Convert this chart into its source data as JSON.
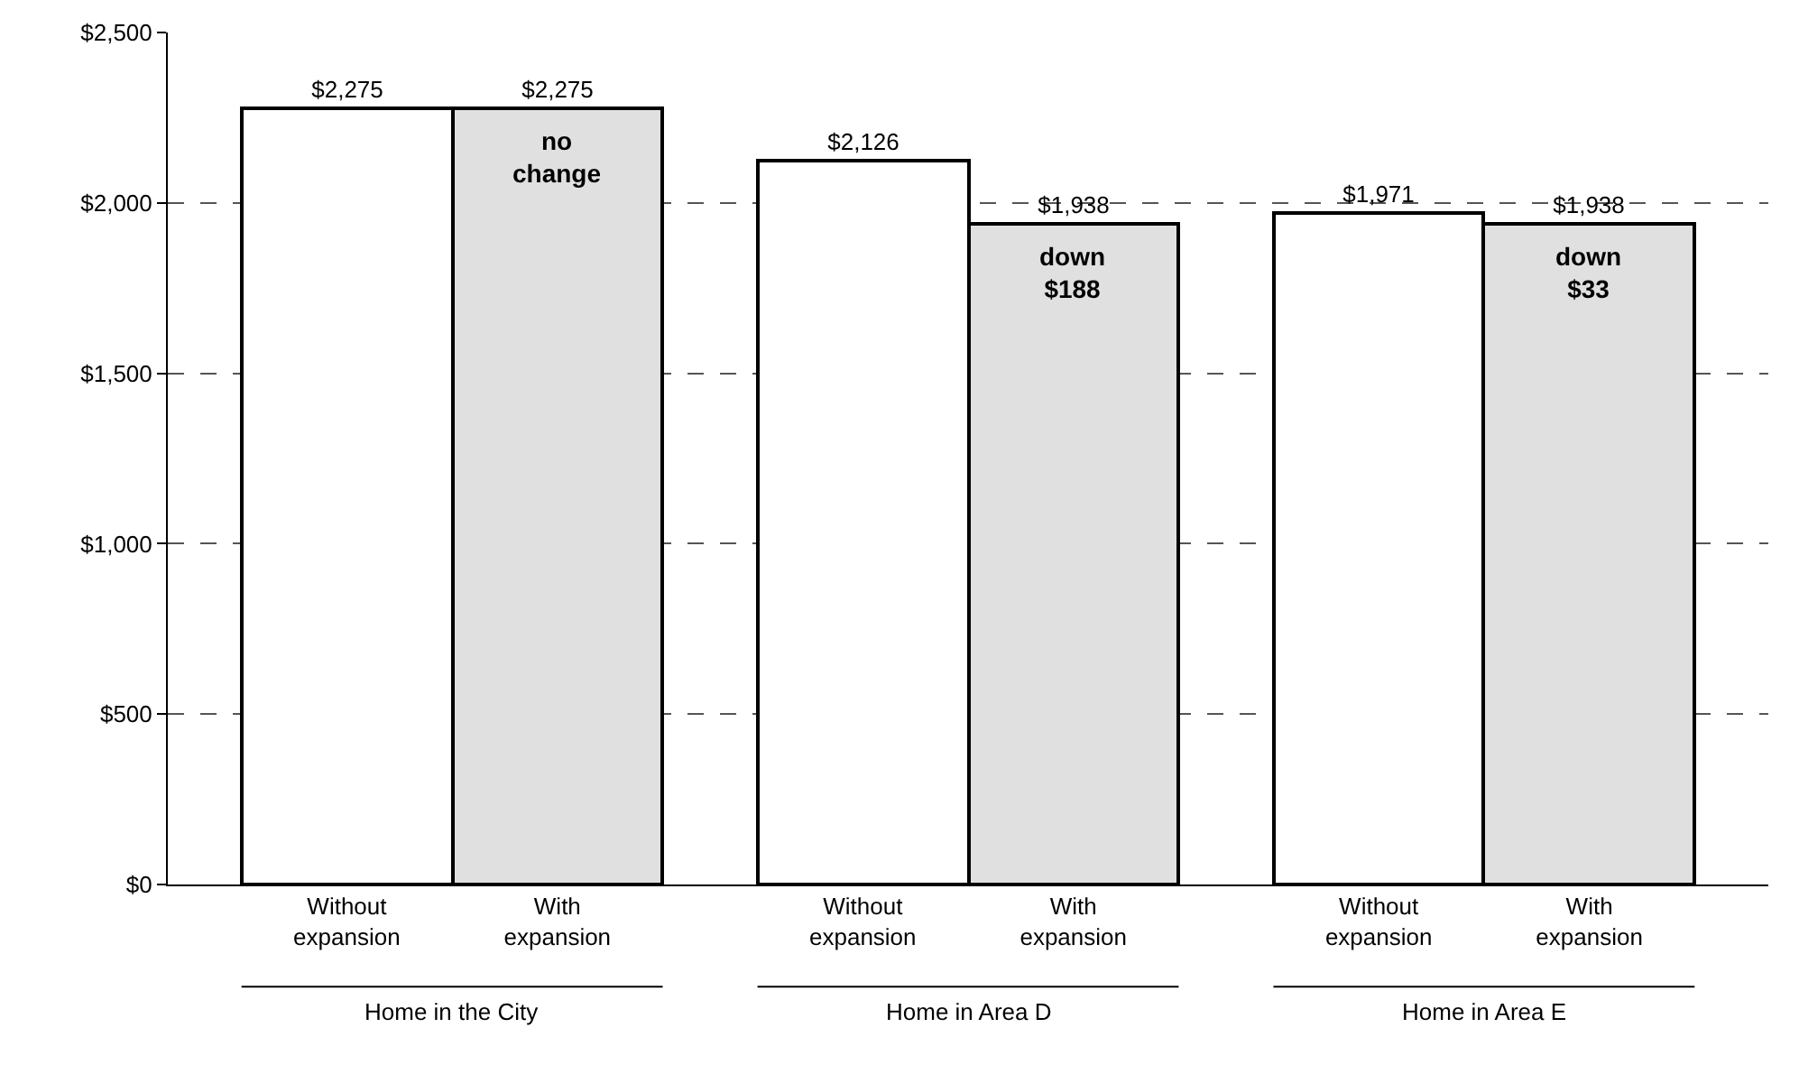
{
  "chart_data": {
    "type": "bar",
    "categories": [
      "Without expansion",
      "With expansion",
      "Without expansion",
      "With expansion",
      "Without expansion",
      "With expansion"
    ],
    "values": [
      2275,
      2275,
      2126,
      1938,
      1971,
      1938
    ],
    "colors": [
      "#ffffff",
      "#e0e0e0",
      "#ffffff",
      "#e0e0e0",
      "#ffffff",
      "#e0e0e0"
    ],
    "value_labels": [
      "$2,275",
      "$2,275",
      "$2,126",
      "$1,938",
      "$1,971",
      "$1,938"
    ],
    "ylim": [
      0,
      2500
    ],
    "yticks": [
      {
        "value": 0,
        "label": "$0"
      },
      {
        "value": 500,
        "label": "$500"
      },
      {
        "value": 1000,
        "label": "$1,000"
      },
      {
        "value": 1500,
        "label": "$1,500"
      },
      {
        "value": 2000,
        "label": "$2,000"
      },
      {
        "value": 2500,
        "label": "$2,500"
      }
    ],
    "grid": "y",
    "annotations": [
      "Home in the City",
      "Home in Area D",
      "Home in Area E",
      "no change",
      "down $188",
      "down $33"
    ]
  }
}
